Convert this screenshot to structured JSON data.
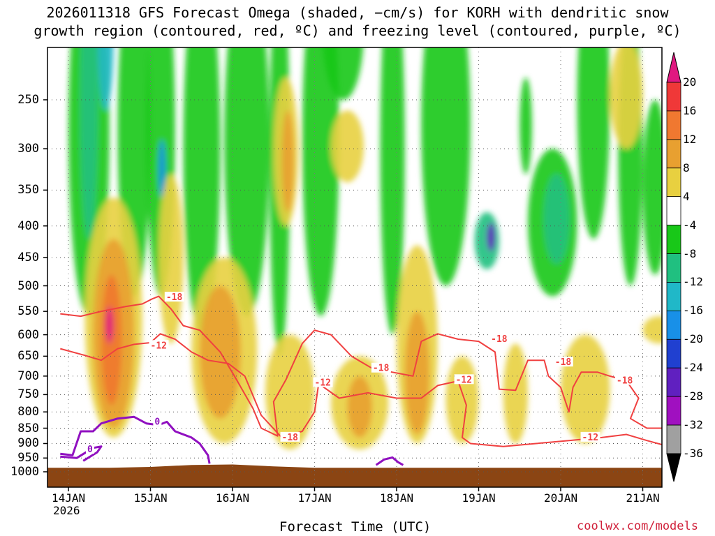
{
  "title_line1": "2026011318 GFS Forecast Omega (shaded, −cm/s) for KORH with dendritic snow",
  "title_line2": "growth region (contoured, red, ºC) and freezing level (contoured, purple, ºC)",
  "x_axis_label": "Forecast Time (UTC)",
  "credit": "coolwx.com/models",
  "year_label": "2026",
  "colors": {
    "ground": "#8b4513",
    "dgz_contour": "#f04040",
    "freezing_contour": "#9010c0",
    "grid": "#888888"
  },
  "chart_data": {
    "type": "heatmap",
    "title": "2026011318 GFS Forecast Omega (shaded, −cm/s) for KORH with dendritic snow growth region (contoured, red, ºC) and freezing level (contoured, purple, ºC)",
    "xlabel": "Forecast Time (UTC)",
    "ylabel": "",
    "x_ticks": [
      "14JAN",
      "15JAN",
      "16JAN",
      "17JAN",
      "18JAN",
      "19JAN",
      "20JAN",
      "21JAN"
    ],
    "y_ticks": [
      250,
      300,
      350,
      400,
      450,
      500,
      550,
      600,
      650,
      700,
      750,
      800,
      850,
      900,
      950,
      1000
    ],
    "y_scale": "log-pressure",
    "colorbar": {
      "ticks": [
        20,
        16,
        12,
        8,
        4,
        -4,
        -8,
        -12,
        -16,
        -20,
        -24,
        -28,
        -32,
        -36
      ],
      "bins": [
        {
          "range": ">20",
          "color": "#e01880"
        },
        {
          "range": "16 to 20",
          "color": "#f03838"
        },
        {
          "range": "12 to 16",
          "color": "#f07830"
        },
        {
          "range": "8 to 12",
          "color": "#e8a030"
        },
        {
          "range": "4 to 8",
          "color": "#e8d040"
        },
        {
          "range": "-4 to 4",
          "color": "#ffffff"
        },
        {
          "range": "-8 to -4",
          "color": "#18c818"
        },
        {
          "range": "-12 to -8",
          "color": "#20c080"
        },
        {
          "range": "-16 to -12",
          "color": "#20b8c8"
        },
        {
          "range": "-20 to -16",
          "color": "#1890e8"
        },
        {
          "range": "-24 to -20",
          "color": "#2040d0"
        },
        {
          "range": "-28 to -24",
          "color": "#6020c0"
        },
        {
          "range": "-32 to -28",
          "color": "#a010c0"
        },
        {
          "range": "-36 to -32",
          "color": "#a0a0a0"
        },
        {
          "range": "<-36",
          "color": "#000000"
        }
      ]
    },
    "contour_labels": [
      {
        "text": "-18",
        "day": 1.19,
        "p": 522,
        "series": "dgz"
      },
      {
        "text": "-12",
        "day": 1.0,
        "p": 625,
        "series": "dgz"
      },
      {
        "text": "-18",
        "day": 2.6,
        "p": 880,
        "series": "dgz"
      },
      {
        "text": "-12",
        "day": 3.0,
        "p": 718,
        "series": "dgz"
      },
      {
        "text": "-18",
        "day": 3.71,
        "p": 680,
        "series": "dgz"
      },
      {
        "text": "-12",
        "day": 4.72,
        "p": 710,
        "series": "dgz"
      },
      {
        "text": "-18",
        "day": 5.15,
        "p": 610,
        "series": "dgz"
      },
      {
        "text": "-18",
        "day": 5.93,
        "p": 665,
        "series": "dgz"
      },
      {
        "text": "-18",
        "day": 6.68,
        "p": 712,
        "series": "dgz"
      },
      {
        "text": "-12",
        "day": 6.26,
        "p": 880,
        "series": "dgz"
      },
      {
        "text": "0",
        "day": 1.05,
        "p": 830,
        "series": "freezing"
      },
      {
        "text": "0",
        "day": 0.23,
        "p": 920,
        "series": "freezing"
      }
    ],
    "dgz_contour_m12": [
      [
        -0.1,
        632
      ],
      [
        0.2,
        648
      ],
      [
        0.4,
        660
      ],
      [
        0.6,
        632
      ],
      [
        0.8,
        622
      ],
      [
        1.0,
        618
      ],
      [
        1.12,
        598
      ],
      [
        1.3,
        610
      ],
      [
        1.5,
        640
      ],
      [
        1.7,
        660
      ],
      [
        1.95,
        668
      ],
      [
        2.15,
        700
      ],
      [
        2.35,
        810
      ],
      [
        2.6,
        880
      ],
      [
        2.85,
        860
      ],
      [
        3.0,
        800
      ],
      [
        3.05,
        720
      ],
      [
        3.3,
        760
      ],
      [
        3.65,
        745
      ],
      [
        4.0,
        760
      ],
      [
        4.3,
        760
      ],
      [
        4.5,
        725
      ],
      [
        4.75,
        713
      ],
      [
        4.85,
        780
      ],
      [
        4.8,
        880
      ],
      [
        4.9,
        900
      ],
      [
        5.3,
        910
      ],
      [
        5.7,
        900
      ],
      [
        6.1,
        890
      ],
      [
        6.5,
        880
      ],
      [
        6.8,
        870
      ],
      [
        7.05,
        890
      ],
      [
        7.25,
        905
      ],
      [
        7.5,
        920
      ]
    ],
    "dgz_contour_m18": [
      [
        -0.1,
        555
      ],
      [
        0.15,
        560
      ],
      [
        0.4,
        550
      ],
      [
        0.7,
        540
      ],
      [
        0.9,
        535
      ],
      [
        1.02,
        525
      ],
      [
        1.1,
        520
      ],
      [
        1.25,
        545
      ],
      [
        1.4,
        580
      ],
      [
        1.6,
        590
      ],
      [
        1.85,
        640
      ],
      [
        2.05,
        710
      ],
      [
        2.25,
        790
      ],
      [
        2.35,
        850
      ],
      [
        2.55,
        875
      ],
      [
        2.5,
        770
      ],
      [
        2.65,
        710
      ],
      [
        2.85,
        620
      ],
      [
        3.0,
        590
      ],
      [
        3.2,
        600
      ],
      [
        3.45,
        650
      ],
      [
        3.7,
        680
      ],
      [
        3.95,
        690
      ],
      [
        4.2,
        700
      ],
      [
        4.3,
        615
      ],
      [
        4.5,
        598
      ],
      [
        4.75,
        610
      ],
      [
        5.0,
        615
      ],
      [
        5.2,
        640
      ],
      [
        5.25,
        735
      ],
      [
        5.45,
        738
      ],
      [
        5.6,
        660
      ],
      [
        5.8,
        660
      ],
      [
        5.85,
        700
      ],
      [
        6.0,
        730
      ],
      [
        6.1,
        800
      ],
      [
        6.15,
        730
      ],
      [
        6.25,
        690
      ],
      [
        6.45,
        690
      ],
      [
        6.6,
        700
      ],
      [
        6.8,
        712
      ],
      [
        6.95,
        760
      ],
      [
        6.85,
        820
      ],
      [
        7.05,
        850
      ],
      [
        7.3,
        850
      ],
      [
        7.5,
        860
      ]
    ],
    "freezing_contour_0": [
      [
        -0.1,
        935
      ],
      [
        0.05,
        940
      ],
      [
        0.15,
        860
      ],
      [
        0.3,
        860
      ],
      [
        0.4,
        835
      ],
      [
        0.6,
        820
      ],
      [
        0.8,
        815
      ],
      [
        0.95,
        835
      ],
      [
        1.1,
        840
      ],
      [
        1.2,
        830
      ],
      [
        1.3,
        860
      ],
      [
        1.5,
        880
      ],
      [
        1.6,
        900
      ],
      [
        1.7,
        940
      ],
      [
        1.72,
        970
      ]
    ],
    "freezing_contour_0_b": [
      [
        3.75,
        975
      ],
      [
        3.85,
        955
      ],
      [
        3.95,
        948
      ],
      [
        4.02,
        965
      ],
      [
        4.08,
        975
      ]
    ],
    "freezing_contour_0_c": [
      [
        -0.1,
        945
      ],
      [
        0.1,
        950
      ],
      [
        0.3,
        915
      ],
      [
        0.4,
        910
      ],
      [
        0.35,
        930
      ],
      [
        0.18,
        960
      ]
    ]
  }
}
